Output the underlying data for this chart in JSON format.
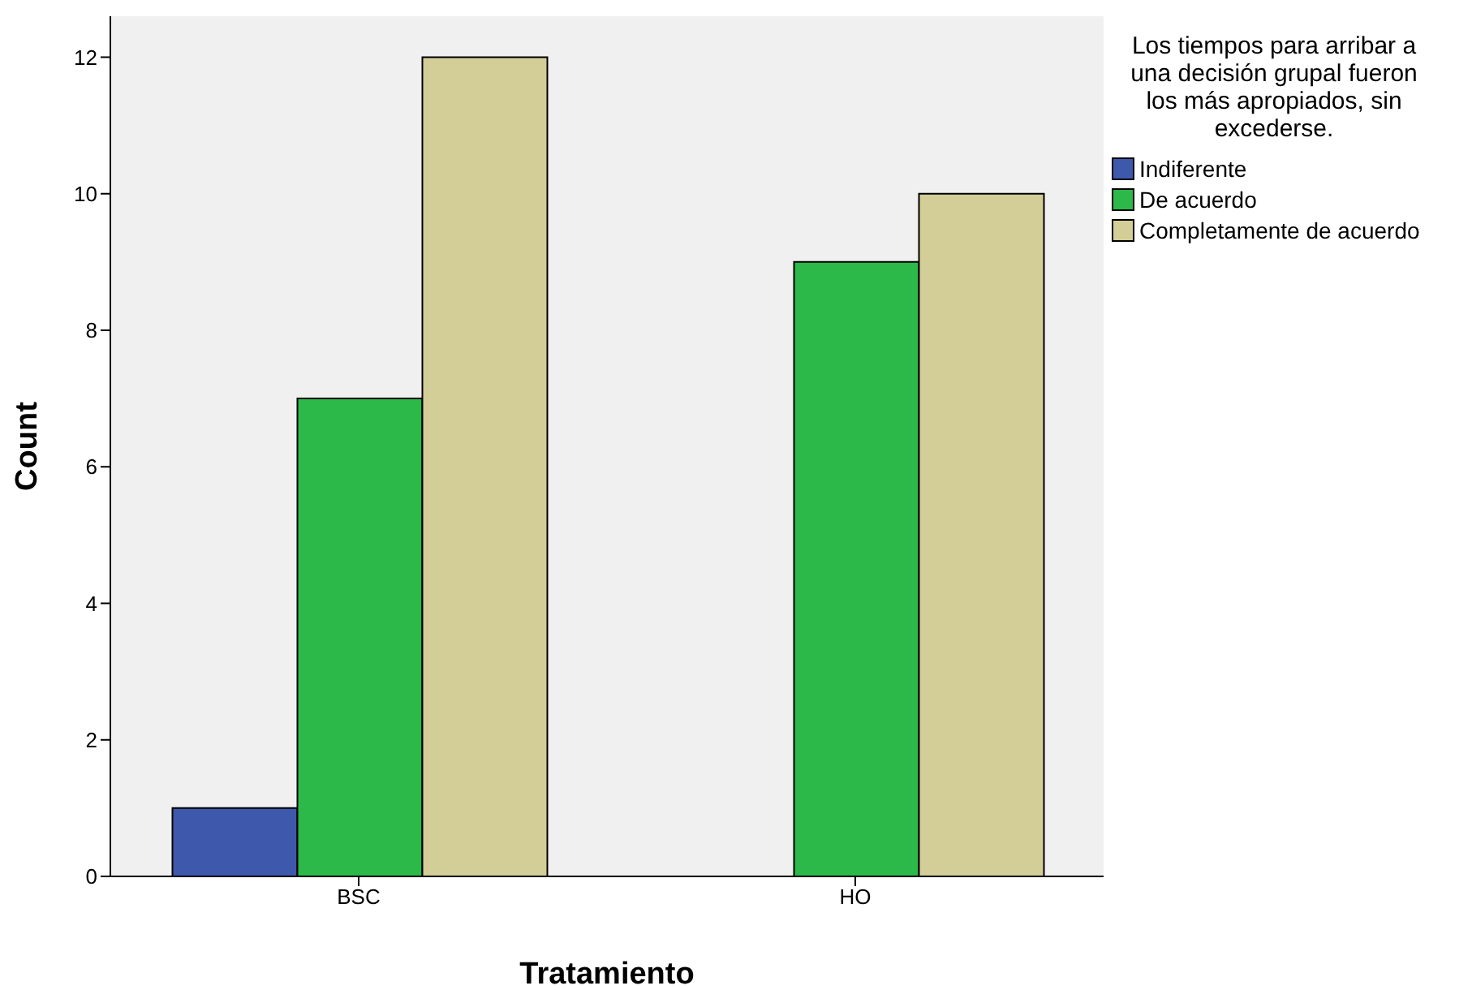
{
  "chart_data": {
    "type": "bar",
    "xlabel": "Tratamiento",
    "ylabel": "Count",
    "legend_title": "Los tiempos para arribar a una decisión grupal fueron los más apropiados, sin excederse.",
    "categories": [
      "BSC",
      "HO"
    ],
    "series": [
      {
        "name": "Indiferente",
        "color": "#3e58ac",
        "values": [
          1,
          null
        ]
      },
      {
        "name": "De acuerdo",
        "color": "#2db84a",
        "values": [
          7,
          9
        ]
      },
      {
        "name": "Completamente de acuerdo",
        "color": "#d3ce97",
        "values": [
          12,
          10
        ]
      }
    ],
    "ylim": [
      0,
      12.6
    ],
    "yticks": [
      0,
      2,
      4,
      6,
      8,
      10,
      12
    ],
    "grid": false,
    "legend": "top right"
  }
}
